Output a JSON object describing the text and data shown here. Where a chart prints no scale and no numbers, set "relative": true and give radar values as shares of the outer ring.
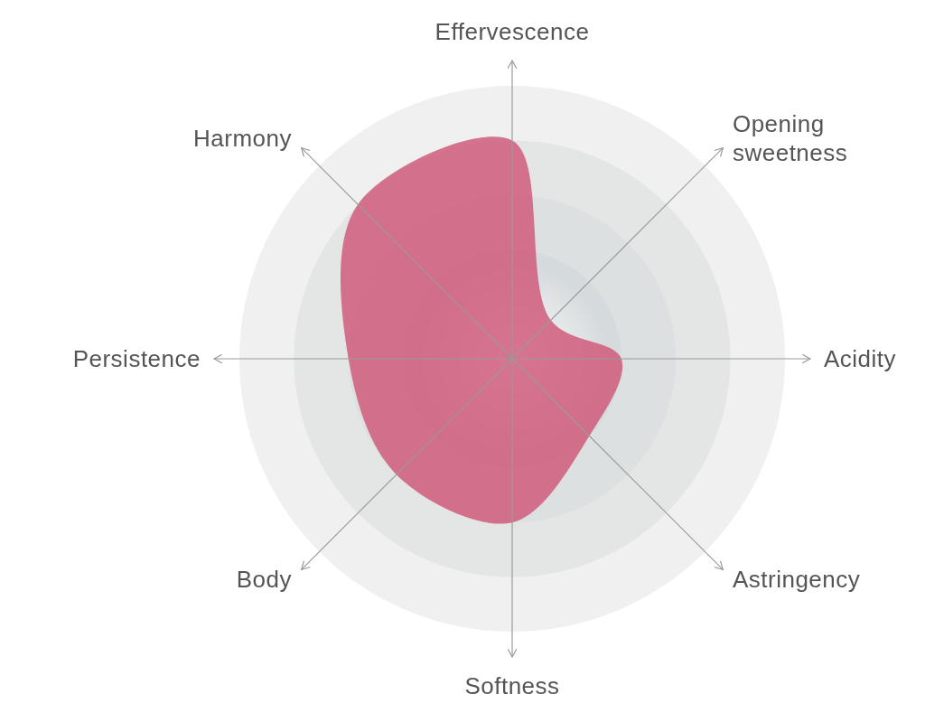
{
  "chart_data": {
    "type": "radar",
    "relative": true,
    "grid": true,
    "categories": [
      "Effervescence",
      "Opening sweetness",
      "Acidity",
      "Astringency",
      "Softness",
      "Body",
      "Persistence",
      "Harmony"
    ],
    "series": [
      {
        "color": "#d0607e",
        "values": [
          0.8,
          0.2,
          0.4,
          0.4,
          0.6,
          0.6,
          0.6,
          0.8
        ]
      }
    ]
  }
}
